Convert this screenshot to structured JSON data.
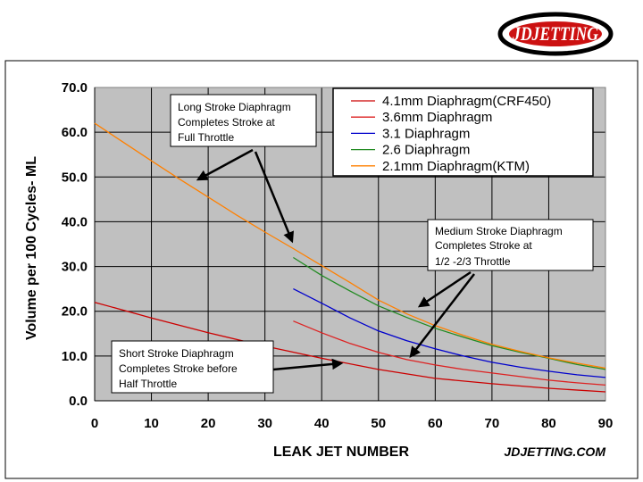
{
  "logo": {
    "text": "JDJETTING"
  },
  "watermark": "JDJETTING.COM",
  "chart_data": {
    "type": "line",
    "xlabel": "LEAK JET NUMBER",
    "ylabel": "Volume per 100 Cycles- ML",
    "xlim": [
      0,
      90
    ],
    "ylim": [
      0,
      70
    ],
    "xticks": [
      "0",
      "10",
      "20",
      "30",
      "40",
      "50",
      "60",
      "70",
      "80",
      "90"
    ],
    "yticks": [
      "0.0",
      "10.0",
      "20.0",
      "30.0",
      "40.0",
      "50.0",
      "60.0",
      "70.0"
    ],
    "grid": true,
    "legend_position": "top-right",
    "series": [
      {
        "name": "4.1mm Diaphragm(CRF450)",
        "color": "#cc0000",
        "x": [
          0,
          10,
          20,
          30,
          40,
          50,
          60,
          70,
          80,
          90
        ],
        "y": [
          22,
          18.5,
          15.2,
          12.2,
          9.5,
          7,
          5,
          3.8,
          2.8,
          2
        ]
      },
      {
        "name": "3.6mm Diaphragm",
        "color": "#dd2222",
        "x": [
          35,
          40,
          45,
          50,
          55,
          60,
          65,
          70,
          75,
          80,
          85,
          90
        ],
        "y": [
          17.8,
          15.2,
          12.8,
          10.8,
          9.2,
          8,
          7,
          6.2,
          5.4,
          4.6,
          4,
          3.5
        ]
      },
      {
        "name": "3.1 Diaphragm",
        "color": "#0000cc",
        "x": [
          35,
          40,
          45,
          50,
          55,
          60,
          65,
          70,
          75,
          80,
          85,
          90
        ],
        "y": [
          25,
          21.8,
          18.5,
          15.6,
          13.4,
          11.6,
          10,
          8.6,
          7.5,
          6.6,
          5.8,
          5.2
        ]
      },
      {
        "name": "2.6 Diaphragm",
        "color": "#228b22",
        "x": [
          35,
          40,
          45,
          50,
          55,
          60,
          65,
          70,
          75,
          80,
          85,
          90
        ],
        "y": [
          32,
          28,
          24.5,
          21.2,
          18.6,
          16.2,
          14.2,
          12.3,
          10.8,
          9.5,
          8.1,
          7
        ]
      },
      {
        "name": "2.1mm Diaphragm(KTM)",
        "color": "#ff8000",
        "x": [
          0,
          5,
          10,
          15,
          20,
          25,
          30,
          35,
          40,
          45,
          50,
          55,
          60,
          65,
          70,
          75,
          80,
          85,
          90
        ],
        "y": [
          62,
          57.8,
          53.6,
          49.5,
          45.5,
          41.5,
          37.7,
          34,
          30.2,
          26.4,
          22.5,
          19.4,
          16.8,
          14.6,
          12.6,
          11,
          9.6,
          8.4,
          7.3
        ]
      }
    ],
    "annotations": [
      {
        "lines": [
          "Long Stroke Diaphragm",
          "Completes Stroke at",
          "Full Throttle"
        ]
      },
      {
        "lines": [
          "Medium Stroke Diaphragm",
          "Completes Stroke at",
          "1/2 -2/3  Throttle"
        ]
      },
      {
        "lines": [
          "Short Stroke Diaphragm",
          "Completes Stroke before",
          "Half Throttle"
        ]
      }
    ]
  }
}
